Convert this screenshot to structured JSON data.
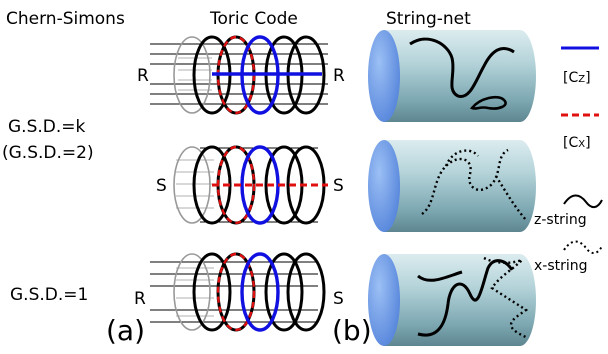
{
  "headers": {
    "chern_simons": "Chern-Simons",
    "toric_code": "Toric Code",
    "string_net": "String-net"
  },
  "gsd": {
    "k": "G.S.D.=k",
    "two": "(G.S.D.=2)",
    "one": "G.S.D.=1"
  },
  "boundary": {
    "row1_left": "R",
    "row1_right": "R",
    "row2_left": "S",
    "row2_right": "S",
    "row3_left": "R",
    "row3_right": "S"
  },
  "panels": {
    "a": "(a)",
    "b": "(b)"
  },
  "legend": {
    "cz_open": "[C",
    "cz_sub": "Z",
    "cz_close": "]",
    "cx_open": "[C",
    "cx_sub": "X",
    "cx_close": "]",
    "z_string": "z-string",
    "x_string": "x-string"
  },
  "colors": {
    "cz_line": "#1010e0",
    "cx_line": "#e01010",
    "cylinder_cap": "#5f8fe6"
  }
}
